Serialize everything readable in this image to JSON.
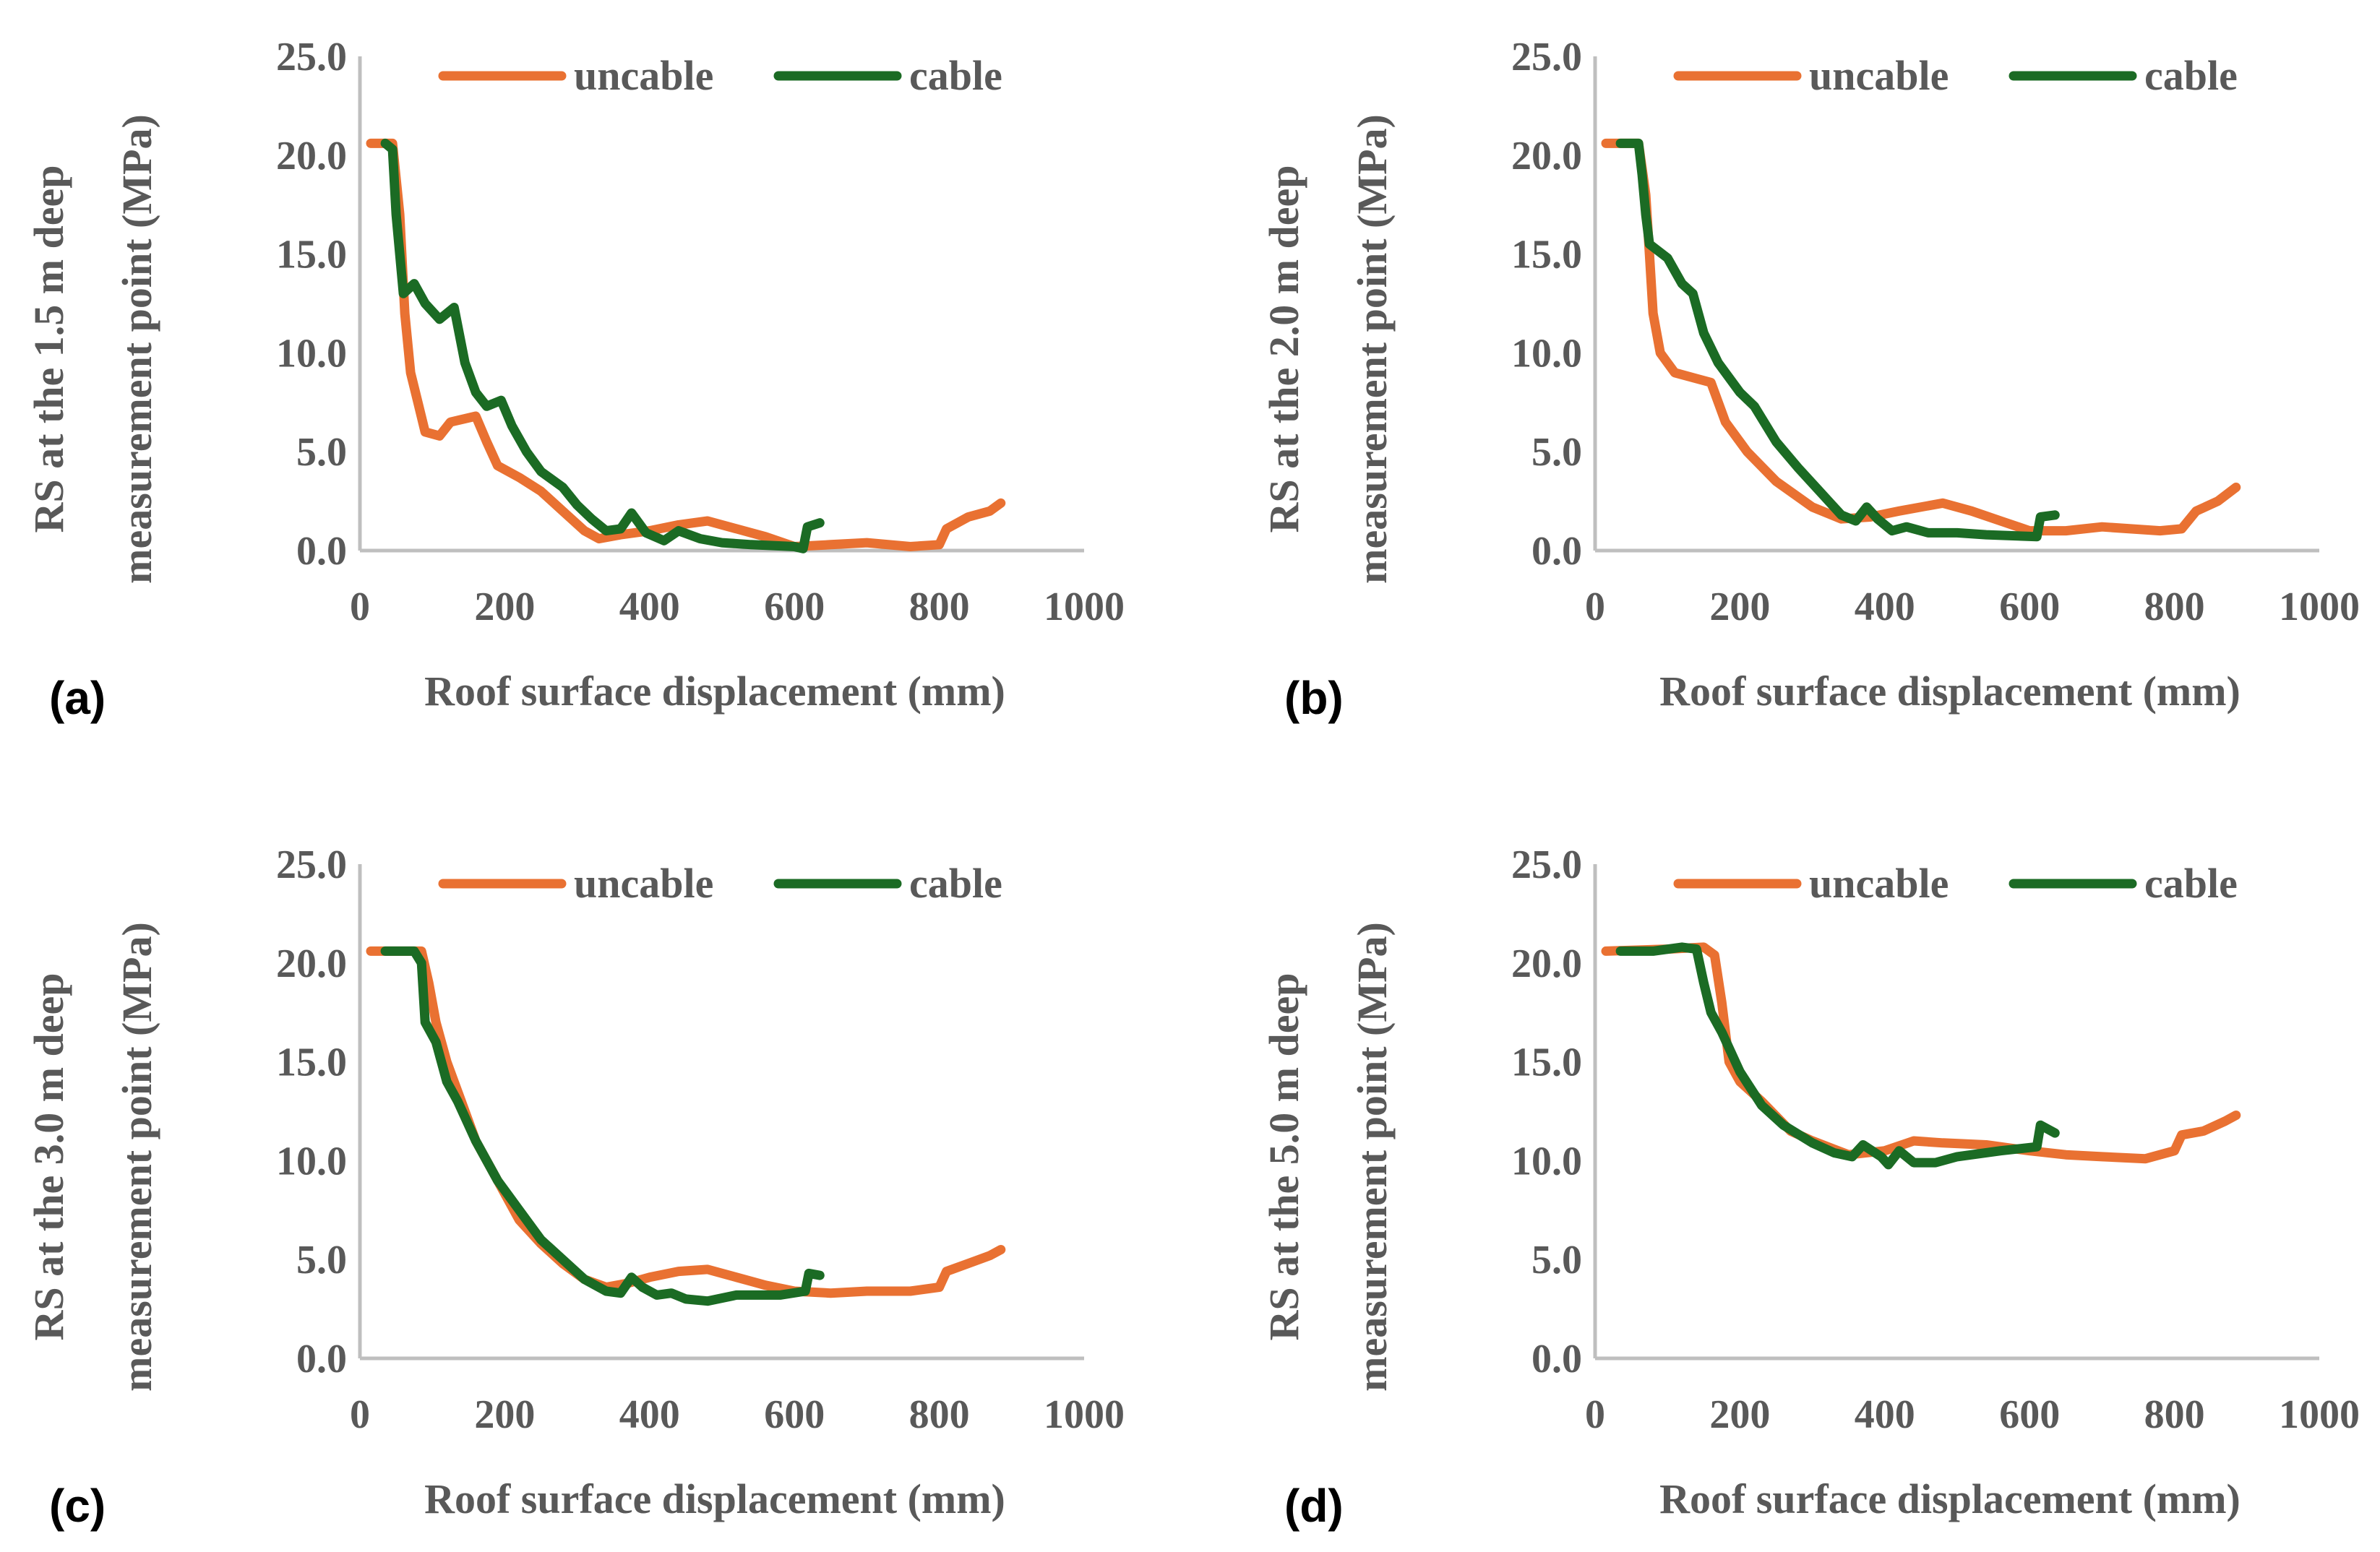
{
  "colors": {
    "uncable": "#E97132",
    "cable": "#1B6B24",
    "axis": "#BFBFBF",
    "text": "#595959"
  },
  "chart_data": [
    {
      "type": "line",
      "panel_label": "(a)",
      "xlabel": "Roof surface displacement (mm)",
      "ylabel": [
        "RS at the 1.5 m deep",
        "measurement point (MPa)"
      ],
      "xlim": [
        0,
        1000
      ],
      "ylim": [
        0,
        25
      ],
      "xticks": [
        "0",
        "200",
        "400",
        "600",
        "800",
        "1000"
      ],
      "yticks": [
        "0.0",
        "5.0",
        "10.0",
        "15.0",
        "20.0",
        "25.0"
      ],
      "legend": "top-center",
      "series": [
        {
          "name": "uncable",
          "points": [
            [
              15,
              20.6
            ],
            [
              45,
              20.6
            ],
            [
              55,
              17
            ],
            [
              62,
              12
            ],
            [
              70,
              9
            ],
            [
              80,
              7.5
            ],
            [
              90,
              6
            ],
            [
              110,
              5.8
            ],
            [
              125,
              6.5
            ],
            [
              160,
              6.8
            ],
            [
              175,
              5.5
            ],
            [
              190,
              4.3
            ],
            [
              220,
              3.7
            ],
            [
              250,
              3
            ],
            [
              280,
              2
            ],
            [
              310,
              1
            ],
            [
              330,
              0.6
            ],
            [
              360,
              0.8
            ],
            [
              400,
              1.0
            ],
            [
              440,
              1.3
            ],
            [
              480,
              1.5
            ],
            [
              520,
              1.1
            ],
            [
              560,
              0.7
            ],
            [
              600,
              0.2
            ],
            [
              650,
              0.3
            ],
            [
              700,
              0.4
            ],
            [
              760,
              0.2
            ],
            [
              800,
              0.3
            ],
            [
              810,
              1.1
            ],
            [
              840,
              1.7
            ],
            [
              870,
              2.0
            ],
            [
              885,
              2.4
            ]
          ]
        },
        {
          "name": "cable",
          "points": [
            [
              35,
              20.6
            ],
            [
              45,
              20.3
            ],
            [
              50,
              17
            ],
            [
              55,
              15
            ],
            [
              60,
              13
            ],
            [
              75,
              13.5
            ],
            [
              90,
              12.5
            ],
            [
              110,
              11.7
            ],
            [
              130,
              12.3
            ],
            [
              145,
              9.5
            ],
            [
              160,
              8
            ],
            [
              175,
              7.3
            ],
            [
              195,
              7.6
            ],
            [
              210,
              6.3
            ],
            [
              230,
              5
            ],
            [
              250,
              4
            ],
            [
              280,
              3.2
            ],
            [
              300,
              2.3
            ],
            [
              320,
              1.6
            ],
            [
              340,
              1.0
            ],
            [
              360,
              1.1
            ],
            [
              375,
              1.9
            ],
            [
              395,
              0.9
            ],
            [
              420,
              0.5
            ],
            [
              440,
              1.0
            ],
            [
              470,
              0.6
            ],
            [
              500,
              0.4
            ],
            [
              540,
              0.3
            ],
            [
              600,
              0.2
            ],
            [
              612,
              0.1
            ],
            [
              618,
              1.2
            ],
            [
              635,
              1.4
            ]
          ]
        }
      ]
    },
    {
      "type": "line",
      "panel_label": "(b)",
      "xlabel": "Roof surface displacement (mm)",
      "ylabel": [
        "RS at the 2.0 m deep",
        "measurement point (MPa)"
      ],
      "xlim": [
        0,
        1000
      ],
      "ylim": [
        0,
        25
      ],
      "xticks": [
        "0",
        "200",
        "400",
        "600",
        "800",
        "1000"
      ],
      "yticks": [
        "0.0",
        "5.0",
        "10.0",
        "15.0",
        "20.0",
        "25.0"
      ],
      "legend": "top-center",
      "series": [
        {
          "name": "uncable",
          "points": [
            [
              15,
              20.6
            ],
            [
              60,
              20.6
            ],
            [
              70,
              18
            ],
            [
              75,
              15
            ],
            [
              80,
              12
            ],
            [
              90,
              10
            ],
            [
              110,
              9
            ],
            [
              140,
              8.7
            ],
            [
              160,
              8.5
            ],
            [
              180,
              6.5
            ],
            [
              210,
              5
            ],
            [
              250,
              3.5
            ],
            [
              300,
              2.2
            ],
            [
              340,
              1.6
            ],
            [
              380,
              1.7
            ],
            [
              420,
              2.0
            ],
            [
              480,
              2.4
            ],
            [
              520,
              2.0
            ],
            [
              560,
              1.5
            ],
            [
              600,
              1.0
            ],
            [
              650,
              1.0
            ],
            [
              700,
              1.2
            ],
            [
              780,
              1.0
            ],
            [
              810,
              1.1
            ],
            [
              830,
              2.0
            ],
            [
              860,
              2.5
            ],
            [
              885,
              3.2
            ]
          ]
        },
        {
          "name": "cable",
          "points": [
            [
              35,
              20.6
            ],
            [
              60,
              20.6
            ],
            [
              65,
              19
            ],
            [
              70,
              17
            ],
            [
              75,
              15.5
            ],
            [
              100,
              14.8
            ],
            [
              120,
              13.5
            ],
            [
              135,
              13
            ],
            [
              150,
              11
            ],
            [
              170,
              9.5
            ],
            [
              200,
              8
            ],
            [
              220,
              7.3
            ],
            [
              250,
              5.5
            ],
            [
              280,
              4.2
            ],
            [
              310,
              3
            ],
            [
              340,
              1.8
            ],
            [
              360,
              1.5
            ],
            [
              375,
              2.2
            ],
            [
              390,
              1.6
            ],
            [
              410,
              1.0
            ],
            [
              430,
              1.2
            ],
            [
              460,
              0.9
            ],
            [
              500,
              0.9
            ],
            [
              540,
              0.8
            ],
            [
              610,
              0.7
            ],
            [
              615,
              1.7
            ],
            [
              635,
              1.8
            ]
          ]
        }
      ]
    },
    {
      "type": "line",
      "panel_label": "(c)",
      "xlabel": "Roof surface displacement (mm)",
      "ylabel": [
        "RS at the 3.0 m deep",
        "measurement point (MPa)"
      ],
      "xlim": [
        0,
        1000
      ],
      "ylim": [
        0,
        25
      ],
      "xticks": [
        "0",
        "200",
        "400",
        "600",
        "800",
        "1000"
      ],
      "yticks": [
        "0.0",
        "5.0",
        "10.0",
        "15.0",
        "20.0",
        "25.0"
      ],
      "legend": "top-center",
      "series": [
        {
          "name": "uncable",
          "points": [
            [
              15,
              20.6
            ],
            [
              85,
              20.6
            ],
            [
              95,
              19
            ],
            [
              105,
              17
            ],
            [
              120,
              15
            ],
            [
              140,
              13
            ],
            [
              160,
              11
            ],
            [
              190,
              9
            ],
            [
              220,
              7
            ],
            [
              250,
              5.8
            ],
            [
              280,
              4.8
            ],
            [
              310,
              4
            ],
            [
              340,
              3.6
            ],
            [
              370,
              3.8
            ],
            [
              400,
              4.1
            ],
            [
              440,
              4.4
            ],
            [
              480,
              4.5
            ],
            [
              520,
              4.1
            ],
            [
              560,
              3.7
            ],
            [
              600,
              3.4
            ],
            [
              650,
              3.3
            ],
            [
              700,
              3.4
            ],
            [
              760,
              3.4
            ],
            [
              800,
              3.6
            ],
            [
              810,
              4.4
            ],
            [
              840,
              4.8
            ],
            [
              870,
              5.2
            ],
            [
              885,
              5.5
            ]
          ]
        },
        {
          "name": "cable",
          "points": [
            [
              35,
              20.6
            ],
            [
              75,
              20.6
            ],
            [
              85,
              20
            ],
            [
              90,
              17
            ],
            [
              105,
              16
            ],
            [
              120,
              14
            ],
            [
              135,
              13
            ],
            [
              160,
              11
            ],
            [
              190,
              9
            ],
            [
              220,
              7.5
            ],
            [
              250,
              6
            ],
            [
              280,
              5
            ],
            [
              310,
              4
            ],
            [
              340,
              3.4
            ],
            [
              360,
              3.3
            ],
            [
              375,
              4.1
            ],
            [
              390,
              3.6
            ],
            [
              410,
              3.2
            ],
            [
              430,
              3.3
            ],
            [
              450,
              3.0
            ],
            [
              480,
              2.9
            ],
            [
              520,
              3.2
            ],
            [
              580,
              3.2
            ],
            [
              615,
              3.4
            ],
            [
              620,
              4.3
            ],
            [
              635,
              4.2
            ]
          ]
        }
      ]
    },
    {
      "type": "line",
      "panel_label": "(d)",
      "xlabel": "Roof surface displacement (mm)",
      "ylabel": [
        "RS at the 5.0 m deep",
        "measurement point (MPa)"
      ],
      "xlim": [
        0,
        1000
      ],
      "ylim": [
        0,
        25
      ],
      "xticks": [
        "0",
        "200",
        "400",
        "600",
        "800",
        "1000"
      ],
      "yticks": [
        "0.0",
        "5.0",
        "10.0",
        "15.0",
        "20.0",
        "25.0"
      ],
      "legend": "top-center",
      "series": [
        {
          "name": "uncable",
          "points": [
            [
              15,
              20.6
            ],
            [
              100,
              20.7
            ],
            [
              150,
              20.8
            ],
            [
              165,
              20.4
            ],
            [
              175,
              18
            ],
            [
              185,
              15
            ],
            [
              200,
              14
            ],
            [
              230,
              13
            ],
            [
              270,
              11.5
            ],
            [
              300,
              11
            ],
            [
              350,
              10.3
            ],
            [
              400,
              10.5
            ],
            [
              440,
              11.0
            ],
            [
              480,
              10.9
            ],
            [
              540,
              10.8
            ],
            [
              600,
              10.5
            ],
            [
              650,
              10.3
            ],
            [
              700,
              10.2
            ],
            [
              760,
              10.1
            ],
            [
              800,
              10.5
            ],
            [
              810,
              11.3
            ],
            [
              840,
              11.5
            ],
            [
              870,
              12
            ],
            [
              885,
              12.3
            ]
          ]
        },
        {
          "name": "cable",
          "points": [
            [
              35,
              20.6
            ],
            [
              80,
              20.6
            ],
            [
              120,
              20.8
            ],
            [
              140,
              20.7
            ],
            [
              150,
              19
            ],
            [
              160,
              17.5
            ],
            [
              175,
              16.5
            ],
            [
              200,
              14.5
            ],
            [
              230,
              12.8
            ],
            [
              260,
              11.8
            ],
            [
              300,
              10.9
            ],
            [
              330,
              10.4
            ],
            [
              355,
              10.2
            ],
            [
              370,
              10.8
            ],
            [
              395,
              10.2
            ],
            [
              405,
              9.8
            ],
            [
              420,
              10.5
            ],
            [
              440,
              9.9
            ],
            [
              470,
              9.9
            ],
            [
              500,
              10.2
            ],
            [
              560,
              10.5
            ],
            [
              610,
              10.7
            ],
            [
              615,
              11.8
            ],
            [
              635,
              11.4
            ]
          ]
        }
      ]
    }
  ]
}
